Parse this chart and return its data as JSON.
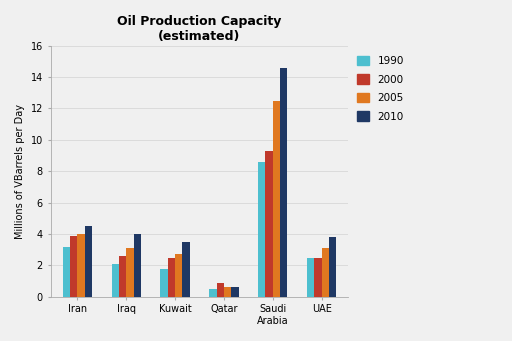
{
  "title": "Oil Production Capacity\n(estimated)",
  "ylabel": "Millions of VBarrels per Day",
  "categories": [
    "Iran",
    "Iraq",
    "Kuwait",
    "Qatar",
    "Saudi\nArabia",
    "UAE"
  ],
  "years": [
    "1990",
    "2000",
    "2005",
    "2010"
  ],
  "colors": [
    "#4dbfcf",
    "#c0392b",
    "#e07820",
    "#1f3864"
  ],
  "values": {
    "1990": [
      3.2,
      2.1,
      1.8,
      0.5,
      8.6,
      2.5
    ],
    "2000": [
      3.9,
      2.6,
      2.5,
      0.9,
      9.3,
      2.5
    ],
    "2005": [
      4.0,
      3.1,
      2.7,
      0.6,
      12.5,
      3.1
    ],
    "2010": [
      4.5,
      4.0,
      3.5,
      0.6,
      14.6,
      3.8
    ]
  },
  "ylim": [
    0,
    16
  ],
  "yticks": [
    0,
    2,
    4,
    6,
    8,
    10,
    12,
    14,
    16
  ],
  "bar_width": 0.15,
  "figsize": [
    5.12,
    3.41
  ],
  "dpi": 100,
  "bg_color": "#f5f5f5",
  "grid_color": "#d8d8d8",
  "title_fontsize": 9,
  "axis_label_fontsize": 7,
  "tick_fontsize": 7,
  "legend_fontsize": 7.5
}
